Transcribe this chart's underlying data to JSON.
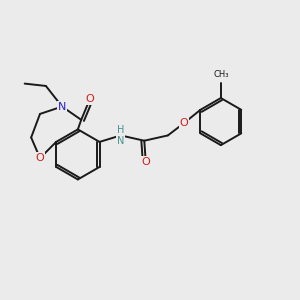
{
  "bg_color": "#ebebeb",
  "bond_color": "#1a1a1a",
  "n_color": "#2020cc",
  "o_color": "#cc2020",
  "nh_color": "#4a9090",
  "bond_width": 1.4,
  "fig_width": 3.0,
  "fig_height": 3.0,
  "xlim": [
    0,
    10
  ],
  "ylim": [
    0,
    10
  ]
}
